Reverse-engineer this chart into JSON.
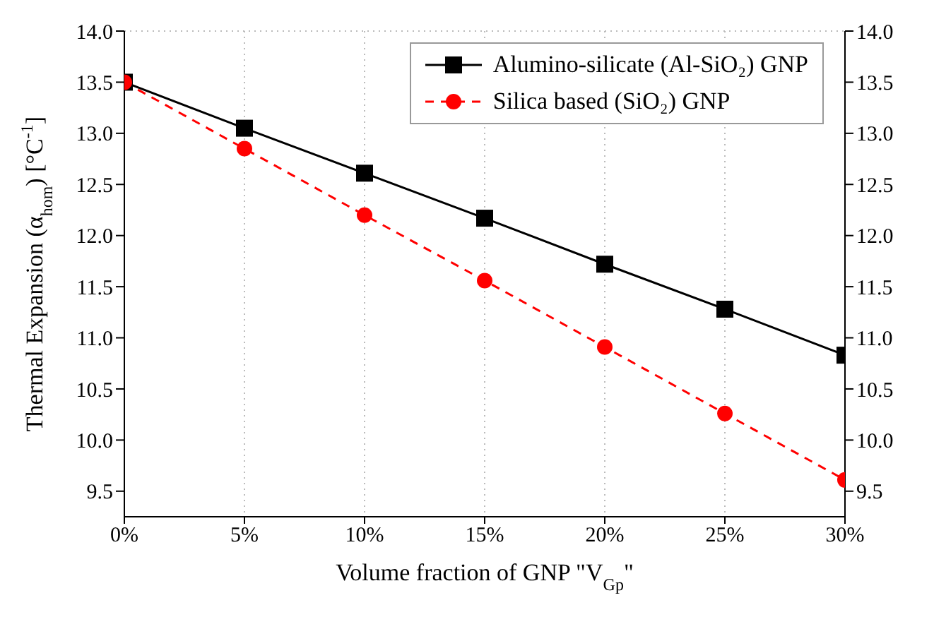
{
  "chart_data": {
    "type": "line",
    "xlabel": "Volume fraction of GNP \"V$_{Gp}$\"",
    "ylabel": "Thermal Expansion (α$_{hom}$) [°C$^{-1}$]",
    "x": [
      0,
      5,
      10,
      15,
      20,
      25,
      30
    ],
    "series": [
      {
        "name": "Alumino-silicate (Al-SiO₂) GNP",
        "color": "#000000",
        "marker": "square",
        "line_style": "solid",
        "values": [
          13.5,
          13.05,
          12.61,
          12.17,
          11.72,
          11.28,
          10.83
        ]
      },
      {
        "name": "Silica based (SiO₂) GNP",
        "color": "#ff0000",
        "marker": "circle",
        "line_style": "dashed",
        "values": [
          13.5,
          12.85,
          12.2,
          11.56,
          10.91,
          10.26,
          9.61
        ]
      }
    ],
    "xlim": [
      0,
      30
    ],
    "xticks": [
      {
        "value": 0,
        "label": "0%"
      },
      {
        "value": 5,
        "label": "5%"
      },
      {
        "value": 10,
        "label": "10%"
      },
      {
        "value": 15,
        "label": "15%"
      },
      {
        "value": 20,
        "label": "20%"
      },
      {
        "value": 25,
        "label": "25%"
      },
      {
        "value": 30,
        "label": "30%"
      }
    ],
    "ylim": [
      9.25,
      14
    ],
    "yticks": [
      {
        "value": 9.5,
        "label": "9.5"
      },
      {
        "value": 10,
        "label": "10.0"
      },
      {
        "value": 10.5,
        "label": "10.5"
      },
      {
        "value": 11,
        "label": "11.0"
      },
      {
        "value": 11.5,
        "label": "11.5"
      },
      {
        "value": 12,
        "label": "12.0"
      },
      {
        "value": 12.5,
        "label": "12.5"
      },
      {
        "value": 13,
        "label": "13.0"
      },
      {
        "value": 13.5,
        "label": "13.5"
      },
      {
        "value": 14,
        "label": "14.0"
      }
    ],
    "y2lim": [
      9.25,
      14
    ],
    "y2ticks": [
      {
        "value": 9.5,
        "label": "9.5"
      },
      {
        "value": 10,
        "label": "10.0"
      },
      {
        "value": 10.5,
        "label": "10.5"
      },
      {
        "value": 11,
        "label": "11.0"
      },
      {
        "value": 11.5,
        "label": "11.5"
      },
      {
        "value": 12,
        "label": "12.0"
      },
      {
        "value": 12.5,
        "label": "12.5"
      },
      {
        "value": 13,
        "label": "13.0"
      },
      {
        "value": 13.5,
        "label": "13.5"
      },
      {
        "value": 14,
        "label": "14.0"
      }
    ],
    "grid": true,
    "legend": "top right"
  }
}
